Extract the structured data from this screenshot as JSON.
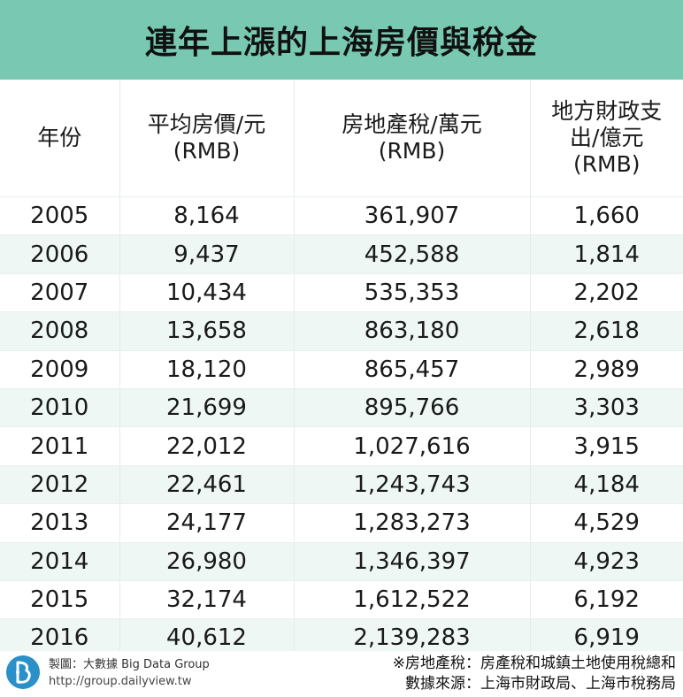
{
  "title": "連年上漲的上海房價與稅金",
  "headers": [
    [
      "年份"
    ],
    [
      "平均房價/元",
      "(RMB)"
    ],
    [
      "房地產稅/萬元",
      "(RMB)"
    ],
    [
      "地方財政支",
      "出/億元",
      "(RMB)"
    ]
  ],
  "rows": [
    [
      "2005",
      "8,164",
      "361,907",
      "1,660"
    ],
    [
      "2006",
      "9,437",
      "452,588",
      "1,814"
    ],
    [
      "2007",
      "10,434",
      "535,353",
      "2,202"
    ],
    [
      "2008",
      "13,658",
      "863,180",
      "2,618"
    ],
    [
      "2009",
      "18,120",
      "865,457",
      "2,989"
    ],
    [
      "2010",
      "21,699",
      "895,766",
      "3,303"
    ],
    [
      "2011",
      "22,012",
      "1,027,616",
      "3,915"
    ],
    [
      "2012",
      "22,461",
      "1,243,743",
      "4,184"
    ],
    [
      "2013",
      "24,177",
      "1,283,273",
      "4,529"
    ],
    [
      "2014",
      "26,980",
      "1,346,397",
      "4,923"
    ],
    [
      "2015",
      "32,174",
      "1,612,522",
      "6,192"
    ],
    [
      "2016",
      "40,612",
      "2,139,283",
      "6,919"
    ]
  ],
  "chart_data": {
    "type": "table",
    "title": "連年上漲的上海房價與稅金",
    "columns": [
      "年份",
      "平均房價/元(RMB)",
      "房地產稅/萬元(RMB)",
      "地方財政支出/億元(RMB)"
    ],
    "x": [
      2005,
      2006,
      2007,
      2008,
      2009,
      2010,
      2011,
      2012,
      2013,
      2014,
      2015,
      2016
    ],
    "series": [
      {
        "name": "平均房價/元(RMB)",
        "values": [
          8164,
          9437,
          10434,
          13658,
          18120,
          21699,
          22012,
          22461,
          24177,
          26980,
          32174,
          40612
        ]
      },
      {
        "name": "房地產稅/萬元(RMB)",
        "values": [
          361907,
          452588,
          535353,
          863180,
          865457,
          895766,
          1027616,
          1243743,
          1283273,
          1346397,
          1612522,
          2139283
        ]
      },
      {
        "name": "地方財政支出/億元(RMB)",
        "values": [
          1660,
          1814,
          2202,
          2618,
          2989,
          3303,
          3915,
          4184,
          4529,
          4923,
          6192,
          6919
        ]
      }
    ]
  },
  "footer": {
    "credit_line1": "製圖：大數據 Big Data Group",
    "credit_line2": "http://group.dailyview.tw",
    "note_line1": "※房地產稅：房產稅和城鎮土地使用稅總和",
    "note_line2": "數據來源：上海市財政局、上海市稅務局"
  },
  "colors": {
    "title_bar": "#79c9b2",
    "row_stripe": "#eef7f3",
    "logo": "#2b8fc8"
  },
  "icons": {
    "logo": "big-data-group-logo"
  }
}
